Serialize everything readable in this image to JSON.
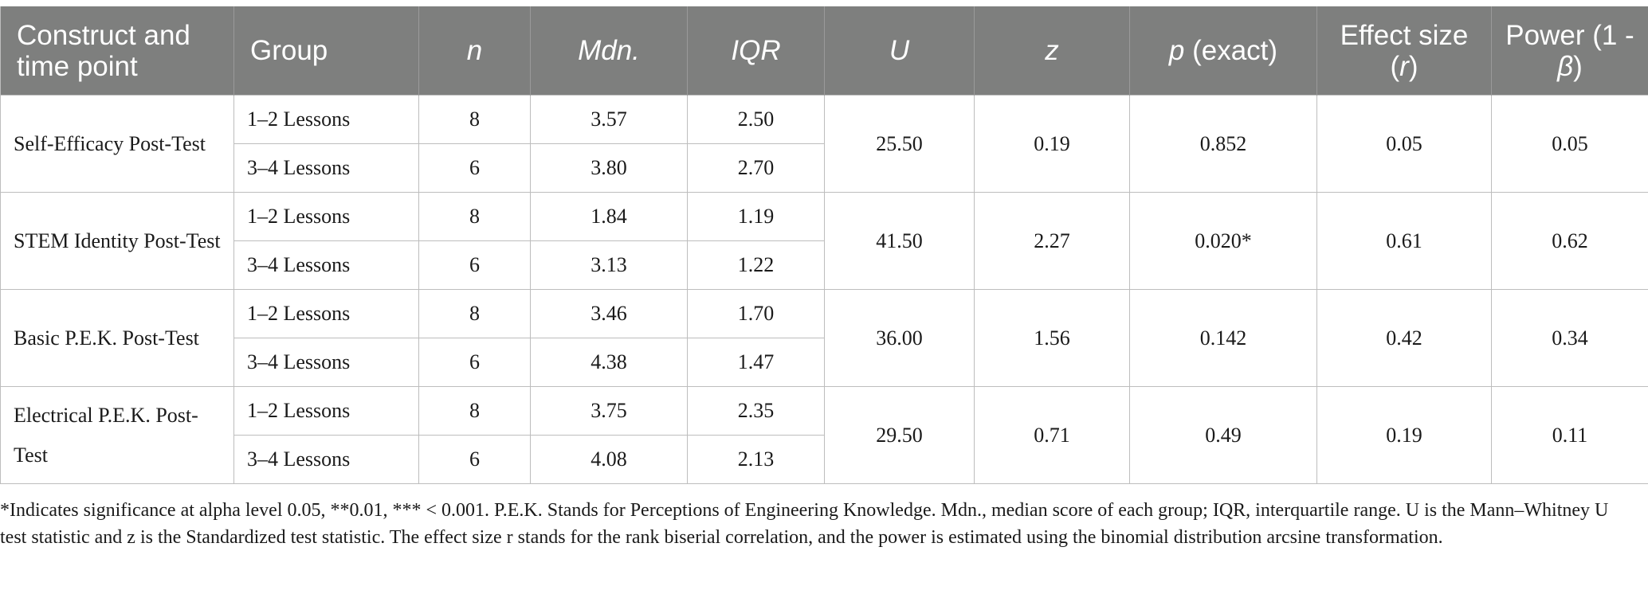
{
  "headers": {
    "construct": "Construct and time point",
    "group": "Group",
    "n": "n",
    "mdn": "Mdn.",
    "iqr": "IQR",
    "u": "U",
    "z": "z",
    "p_italic": "p",
    "p_rest": " (exact)",
    "effect_line1": "Effect size",
    "effect_r": "r",
    "power_line1": "Power (1 -",
    "power_beta": "β"
  },
  "rows": [
    {
      "construct": "Self-Efficacy Post-Test",
      "groups": [
        {
          "group": "1–2 Lessons",
          "n": "8",
          "mdn": "3.57",
          "iqr": "2.50"
        },
        {
          "group": "3–4 Lessons",
          "n": "6",
          "mdn": "3.80",
          "iqr": "2.70"
        }
      ],
      "u": "25.50",
      "z": "0.19",
      "p": "0.852",
      "r": "0.05",
      "power": "0.05"
    },
    {
      "construct": "STEM Identity Post-Test",
      "groups": [
        {
          "group": "1–2 Lessons",
          "n": "8",
          "mdn": "1.84",
          "iqr": "1.19"
        },
        {
          "group": "3–4 Lessons",
          "n": "6",
          "mdn": "3.13",
          "iqr": "1.22"
        }
      ],
      "u": "41.50",
      "z": "2.27",
      "p": "0.020*",
      "r": "0.61",
      "power": "0.62"
    },
    {
      "construct": "Basic P.E.K. Post-Test",
      "groups": [
        {
          "group": "1–2 Lessons",
          "n": "8",
          "mdn": "3.46",
          "iqr": "1.70"
        },
        {
          "group": "3–4 Lessons",
          "n": "6",
          "mdn": "4.38",
          "iqr": "1.47"
        }
      ],
      "u": "36.00",
      "z": "1.56",
      "p": "0.142",
      "r": "0.42",
      "power": "0.34"
    },
    {
      "construct": "Electrical P.E.K. Post-Test",
      "groups": [
        {
          "group": "1–2 Lessons",
          "n": "8",
          "mdn": "3.75",
          "iqr": "2.35"
        },
        {
          "group": "3–4 Lessons",
          "n": "6",
          "mdn": "4.08",
          "iqr": "2.13"
        }
      ],
      "u": "29.50",
      "z": "0.71",
      "p": "0.49",
      "r": "0.19",
      "power": "0.11"
    }
  ],
  "footnote": "*Indicates significance at alpha level 0.05, **0.01, *** < 0.001. P.E.K. Stands for Perceptions of Engineering Knowledge. Mdn., median score of each group; IQR, interquartile range. U is the Mann–Whitney U test statistic and z is the Standardized test statistic. The effect size r stands for the rank biserial correlation, and the power is estimated using the binomial distribution arcsine transformation."
}
